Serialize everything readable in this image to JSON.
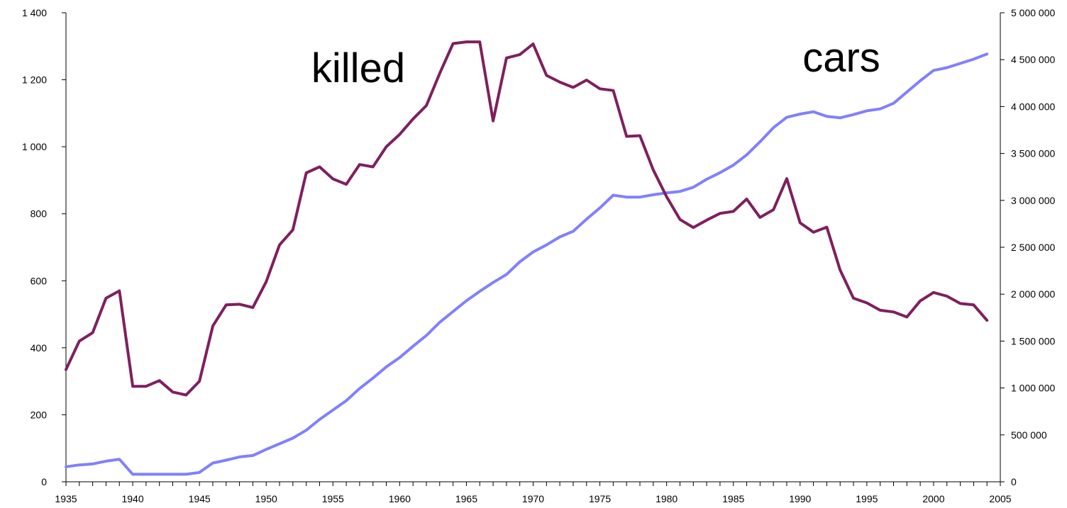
{
  "chart_data": {
    "type": "line",
    "grid": false,
    "x": [
      1935,
      1936,
      1937,
      1938,
      1939,
      1940,
      1941,
      1942,
      1943,
      1944,
      1945,
      1946,
      1947,
      1948,
      1949,
      1950,
      1951,
      1952,
      1953,
      1954,
      1955,
      1956,
      1957,
      1958,
      1959,
      1960,
      1961,
      1962,
      1963,
      1964,
      1965,
      1966,
      1967,
      1968,
      1969,
      1970,
      1971,
      1972,
      1973,
      1974,
      1975,
      1976,
      1977,
      1978,
      1979,
      1980,
      1981,
      1982,
      1983,
      1984,
      1985,
      1986,
      1987,
      1988,
      1989,
      1990,
      1991,
      1992,
      1993,
      1994,
      1995,
      1996,
      1997,
      1998,
      1999,
      2000,
      2001,
      2002,
      2003,
      2004
    ],
    "xlim": [
      1935,
      2005
    ],
    "x_ticks": [
      "1935",
      "1940",
      "1945",
      "1950",
      "1955",
      "1960",
      "1965",
      "1970",
      "1975",
      "1980",
      "1985",
      "1990",
      "1995",
      "2000",
      "2005"
    ],
    "y_left": {
      "lim": [
        0,
        1400
      ],
      "ticks": [
        0,
        200,
        400,
        600,
        800,
        1000,
        1200,
        1400
      ],
      "tick_labels": [
        "0",
        "200",
        "400",
        "600",
        "800",
        "1 000",
        "1 200",
        "1 400"
      ]
    },
    "y_right": {
      "lim": [
        0,
        5000000
      ],
      "ticks": [
        0,
        500000,
        1000000,
        1500000,
        2000000,
        2500000,
        3000000,
        3500000,
        4000000,
        4500000,
        5000000
      ],
      "tick_labels": [
        "0",
        "500 000",
        "1 000 000",
        "1 500 000",
        "2 000 000",
        "2 500 000",
        "3 000 000",
        "3 500 000",
        "4 000 000",
        "4 500 000",
        "5 000 000"
      ]
    },
    "series": [
      {
        "name": "killed",
        "axis": "left",
        "color": "#7f1f5e",
        "values": [
          335,
          420,
          445,
          548,
          570,
          285,
          285,
          302,
          268,
          259,
          300,
          465,
          528,
          530,
          520,
          597,
          707,
          752,
          922,
          940,
          904,
          888,
          947,
          940,
          1000,
          1037,
          1083,
          1123,
          1219,
          1308,
          1313,
          1313,
          1077,
          1265,
          1275,
          1307,
          1213,
          1193,
          1177,
          1199,
          1173,
          1168,
          1031,
          1033,
          931,
          851,
          783,
          759,
          781,
          801,
          807,
          844,
          789,
          812,
          905,
          773,
          745,
          760,
          632,
          548,
          534,
          512,
          507,
          492,
          540,
          565,
          554,
          532,
          528,
          482
        ]
      },
      {
        "name": "cars",
        "axis": "right",
        "color": "#8080ff",
        "values": [
          160000,
          180000,
          190000,
          220000,
          240000,
          80000,
          80000,
          80000,
          80000,
          80000,
          100000,
          200000,
          230000,
          265000,
          280000,
          345000,
          405000,
          465000,
          550000,
          665000,
          765000,
          865000,
          995000,
          1105000,
          1225000,
          1325000,
          1445000,
          1560000,
          1700000,
          1815000,
          1930000,
          2030000,
          2125000,
          2210000,
          2345000,
          2450000,
          2525000,
          2610000,
          2670000,
          2800000,
          2920000,
          3055000,
          3035000,
          3035000,
          3060000,
          3080000,
          3095000,
          3140000,
          3225000,
          3295000,
          3375000,
          3485000,
          3625000,
          3775000,
          3885000,
          3920000,
          3945000,
          3895000,
          3880000,
          3915000,
          3955000,
          3975000,
          4035000,
          4155000,
          4275000,
          4385000,
          4415000,
          4460000,
          4505000,
          4560000
        ]
      }
    ]
  },
  "labels": {
    "killed": "killed",
    "cars": "cars"
  }
}
